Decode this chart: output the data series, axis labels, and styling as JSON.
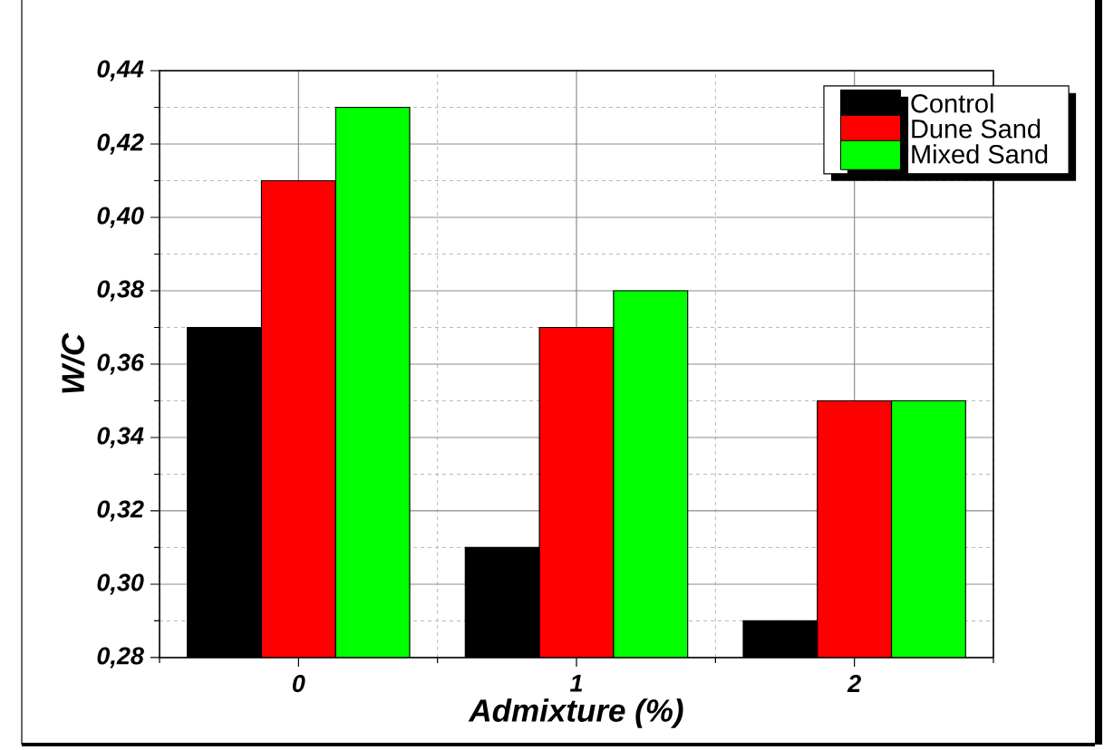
{
  "chart_data": {
    "type": "bar",
    "xlabel": "Admixture (%)",
    "ylabel": "W/C",
    "categories": [
      "0",
      "1",
      "2"
    ],
    "series": [
      {
        "name": "Control",
        "color": "#000000",
        "values": [
          0.37,
          0.31,
          0.29
        ]
      },
      {
        "name": "Dune Sand",
        "color": "#ff0000",
        "values": [
          0.41,
          0.37,
          0.35
        ]
      },
      {
        "name": "Mixed Sand",
        "color": "#00ff00",
        "values": [
          0.43,
          0.38,
          0.35
        ]
      }
    ],
    "ylim": [
      0.28,
      0.44
    ],
    "yticks": [
      {
        "value": 0.28,
        "label": "0,28"
      },
      {
        "value": 0.3,
        "label": "0,30"
      },
      {
        "value": 0.32,
        "label": "0,32"
      },
      {
        "value": 0.34,
        "label": "0,34"
      },
      {
        "value": 0.36,
        "label": "0,36"
      },
      {
        "value": 0.38,
        "label": "0,38"
      },
      {
        "value": 0.4,
        "label": "0,40"
      },
      {
        "value": 0.42,
        "label": "0,42"
      },
      {
        "value": 0.44,
        "label": "0,44"
      }
    ],
    "grid": true,
    "legend": "top right"
  }
}
